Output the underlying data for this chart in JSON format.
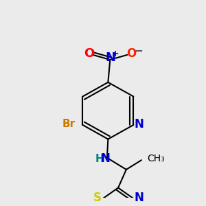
{
  "background_color": "#ebebeb",
  "bond_color": "#000000",
  "bond_width": 1.5,
  "fig_width": 3.0,
  "fig_height": 3.0,
  "dpi": 100,
  "colors": {
    "N": "#0000cc",
    "O": "#ff0000",
    "O_minus": "#ff2200",
    "Br": "#cc7700",
    "NH": "#008080",
    "S": "#cccc00",
    "C": "#000000"
  }
}
